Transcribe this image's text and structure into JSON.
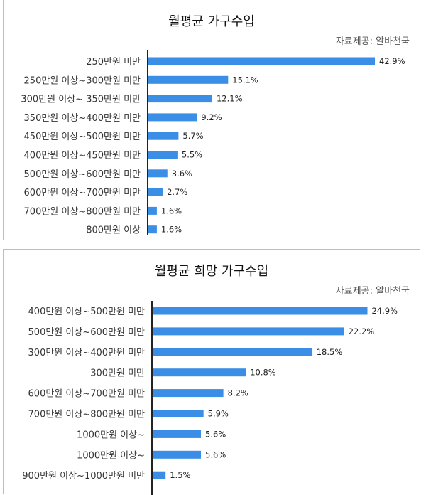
{
  "chart_data": [
    {
      "type": "bar",
      "orientation": "horizontal",
      "title": "월평균 가구수입",
      "source": "자료제공: 알바천국",
      "categories": [
        "250만원 미만",
        "250만원 이상~300만원 미만",
        "300만원 이상~ 350만원 미만",
        "350만원 이상~400만원 미만",
        "450만원 이상~500만원 미만",
        "400만원 이상~450만원 미만",
        "500만원 이상~600만원 미만",
        "600만원 이상~700만원 미만",
        "700만원 이상~800만원 미만",
        "800만원 이상"
      ],
      "values": [
        42.9,
        15.1,
        12.1,
        9.2,
        5.7,
        5.5,
        3.6,
        2.7,
        1.6,
        1.6
      ],
      "labels": [
        "42.9%",
        "15.1%",
        "12.1%",
        "9.2%",
        "5.7%",
        "5.5%",
        "3.6%",
        "2.7%",
        "1.6%",
        "1.6%"
      ],
      "xlim": [
        0,
        43.3
      ],
      "bar_color": "#3a8ee6"
    },
    {
      "type": "bar",
      "orientation": "horizontal",
      "title": "월평균 희망 가구수입",
      "source": "자료제공: 알바천국",
      "categories": [
        "400만원 이상~500만원 미만",
        "500만원 이상~600만원 미만",
        "300만원 이상~400만원 미만",
        "300만원 미만",
        "600만원 이상~700만원 미만",
        "700만원 이상~800만원 미만",
        "1000만원 이상~",
        "1000만원 이상~",
        "900만원 이상~1000만원 미만"
      ],
      "values": [
        24.9,
        22.2,
        18.5,
        10.8,
        8.2,
        5.9,
        5.6,
        5.6,
        1.5
      ],
      "labels": [
        "24.9%",
        "22.2%",
        "18.5%",
        "10.8%",
        "8.2%",
        "5.9%",
        "5.6%",
        "5.6%",
        "1.5%"
      ],
      "xlim": [
        0,
        25.6
      ],
      "bar_color": "#3a8ee6"
    }
  ]
}
